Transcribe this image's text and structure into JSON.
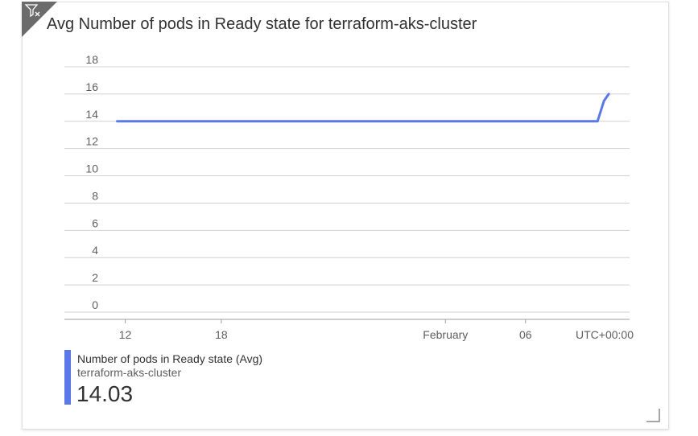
{
  "colors": {
    "series": "#5a78e8",
    "grid": "#d2d0ce",
    "axis": "#a19f9d",
    "corner": "#6b6b6b"
  },
  "tile": {
    "title": "Avg Number of pods in Ready state for terraform-aks-cluster",
    "corner_icon": "filter-icon",
    "resize_icon": "resize-handle-icon"
  },
  "legend": {
    "metric": "Number of pods in Ready state (Avg)",
    "resource": "terraform-aks-cluster",
    "value": "14.03"
  },
  "chart_data": {
    "type": "line",
    "title": "Avg Number of pods in Ready state for terraform-aks-cluster",
    "xlabel": "",
    "ylabel": "",
    "ylim": [
      0,
      18
    ],
    "yticks": [
      0,
      2,
      4,
      6,
      8,
      10,
      12,
      14,
      16,
      18
    ],
    "xticks": [
      {
        "label": "12",
        "day": 12
      },
      {
        "label": "18",
        "day": 18
      },
      {
        "label": "February",
        "day": 32
      },
      {
        "label": "06",
        "day": 37
      }
    ],
    "xrange_days": [
      8.2,
      43.5
    ],
    "timezone_label": "UTC+00:00",
    "grid": true,
    "series": [
      {
        "name": "Number of pods in Ready state (Avg)",
        "points": [
          {
            "day": 11.5,
            "y": 14
          },
          {
            "day": 41.5,
            "y": 14
          },
          {
            "day": 41.9,
            "y": 15.5
          },
          {
            "day": 42.2,
            "y": 16
          }
        ]
      }
    ]
  }
}
